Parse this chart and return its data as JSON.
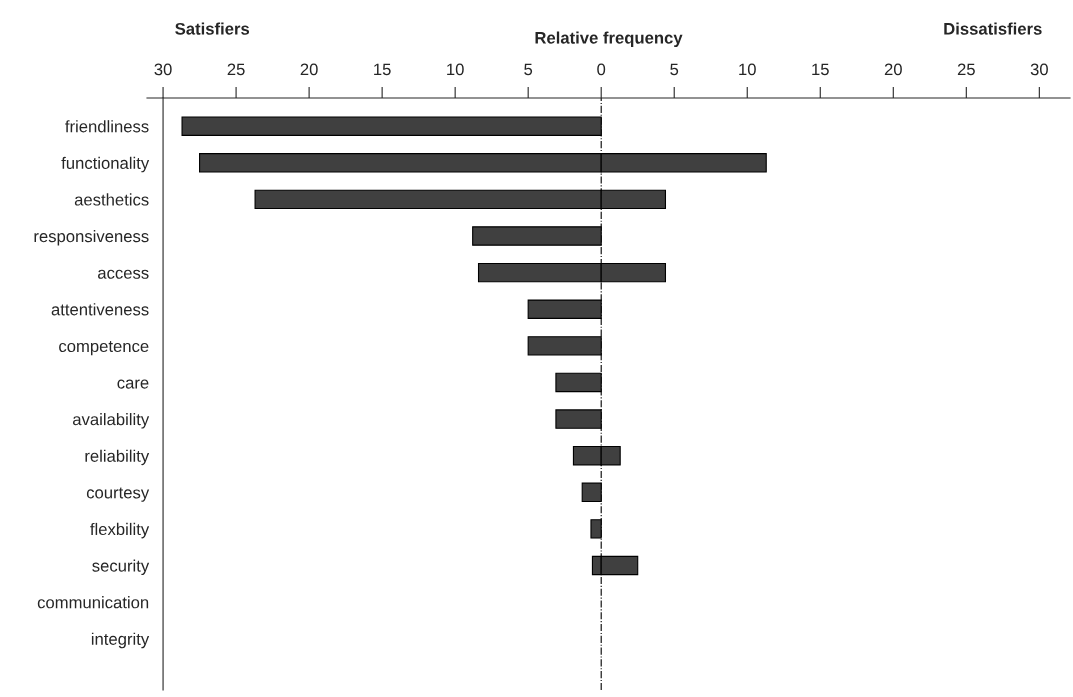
{
  "chart_data": {
    "type": "bar",
    "orientation": "horizontal",
    "xlabel": "Relative frequency",
    "categories": [
      "friendliness",
      "functionality",
      "aesthetics",
      "responsiveness",
      "access",
      "attentiveness",
      "competence",
      "care",
      "availability",
      "reliability",
      "courtesy",
      "flexbility",
      "security",
      "communication",
      "integrity"
    ],
    "series": [
      {
        "color": "#404040",
        "values": [
          -28.7,
          -27.5,
          -23.7,
          -8.8,
          -8.4,
          -5.0,
          -5.0,
          -3.1,
          -3.1,
          -1.9,
          -1.3,
          -0.7,
          -0.6,
          null,
          null
        ]
      },
      {
        "color": "#404040",
        "values": [
          null,
          11.3,
          4.4,
          null,
          4.4,
          null,
          null,
          null,
          null,
          1.3,
          null,
          null,
          2.5,
          null,
          null
        ]
      }
    ],
    "xlim": [
      -31.1,
      32.1
    ],
    "xticks": [
      {
        "value": -30,
        "label": "30"
      },
      {
        "value": -25,
        "label": "25"
      },
      {
        "value": -20,
        "label": "20"
      },
      {
        "value": -15,
        "label": "15"
      },
      {
        "value": -10,
        "label": "10"
      },
      {
        "value": -5,
        "label": "5"
      },
      0,
      5,
      10,
      15,
      20,
      25,
      30
    ],
    "ref_lines": [
      {
        "axis": "x",
        "value": 0,
        "line_style": "dashdot",
        "color": "#000000"
      }
    ],
    "annotations": [
      "Satisfiers",
      "Dissatisfiers"
    ],
    "grid": false,
    "legend": false
  }
}
